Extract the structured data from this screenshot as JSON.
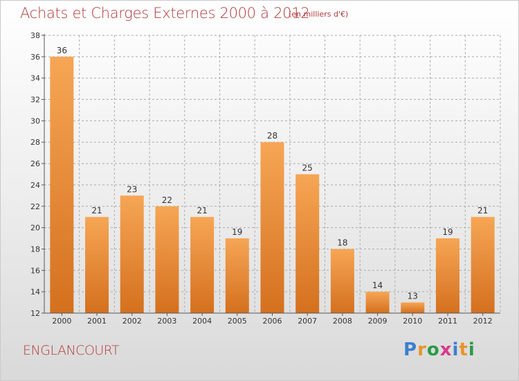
{
  "title": "Achats et Charges Externes 2000 à 2012",
  "subtitle": "(en milliers d'€)",
  "location": "ENGLANCOURT",
  "logo": {
    "text": "Proxiti",
    "letter_colors": [
      "#3a7fd0",
      "#e8942a",
      "#2a9a4a",
      "#d83a8a",
      "#3a7fd0",
      "#e8942a",
      "#2a9a4a"
    ]
  },
  "colors": {
    "bar_top": "#f6a655",
    "bar_bottom": "#d4701e",
    "grid": "#aaaaaa",
    "text": "#333333",
    "accent": "#b23a3a"
  },
  "chart_data": {
    "type": "bar",
    "categories": [
      "2000",
      "2001",
      "2002",
      "2003",
      "2004",
      "2005",
      "2006",
      "2007",
      "2008",
      "2009",
      "2010",
      "2011",
      "2012"
    ],
    "values": [
      36,
      21,
      23,
      22,
      21,
      19,
      28,
      25,
      18,
      14,
      13,
      19,
      21
    ],
    "title": "Achats et Charges Externes 2000 à 2012",
    "ylim": [
      12,
      38
    ],
    "yticks": [
      12,
      14,
      16,
      18,
      20,
      22,
      24,
      26,
      28,
      30,
      32,
      34,
      36,
      38
    ],
    "grid": true
  }
}
